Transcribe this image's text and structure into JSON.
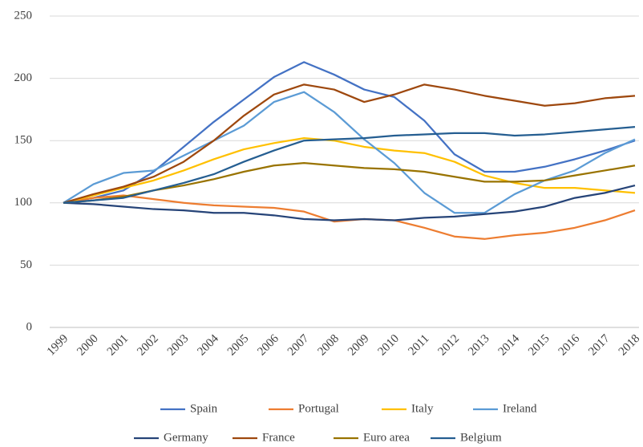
{
  "chart_data": {
    "type": "line",
    "categories": [
      "1999",
      "2000",
      "2001",
      "2002",
      "2003",
      "2004",
      "2005",
      "2006",
      "2007",
      "2008",
      "2009",
      "2010",
      "2011",
      "2012",
      "2013",
      "2014",
      "2015",
      "2016",
      "2017",
      "2018"
    ],
    "series": [
      {
        "name": "Spain",
        "color": "#4472c4",
        "values": [
          100,
          104,
          110,
          125,
          145,
          165,
          183,
          201,
          213,
          203,
          191,
          185,
          166,
          139,
          125,
          125,
          129,
          135,
          142,
          150
        ]
      },
      {
        "name": "Portugal",
        "color": "#ed7d31",
        "values": [
          100,
          104,
          106,
          103,
          100,
          98,
          97,
          96,
          93,
          85,
          87,
          86,
          80,
          73,
          71,
          74,
          76,
          80,
          86,
          94
        ]
      },
      {
        "name": "Italy",
        "color": "#ffc000",
        "values": [
          100,
          106,
          112,
          118,
          126,
          135,
          143,
          148,
          152,
          150,
          145,
          142,
          140,
          133,
          122,
          116,
          112,
          112,
          110,
          108
        ]
      },
      {
        "name": "Ireland",
        "color": "#5b9bd5",
        "values": [
          100,
          115,
          124,
          126,
          138,
          150,
          162,
          181,
          189,
          173,
          151,
          132,
          108,
          92,
          92,
          107,
          118,
          126,
          140,
          151
        ]
      },
      {
        "name": "Germany",
        "color": "#264478",
        "values": [
          100,
          99,
          97,
          95,
          94,
          92,
          92,
          90,
          87,
          86,
          87,
          86,
          88,
          89,
          91,
          93,
          97,
          104,
          108,
          114
        ]
      },
      {
        "name": "France",
        "color": "#9e480e",
        "values": [
          100,
          107,
          113,
          121,
          133,
          150,
          170,
          187,
          195,
          191,
          181,
          187,
          195,
          191,
          186,
          182,
          178,
          180,
          184,
          186
        ]
      },
      {
        "name": "Euro area",
        "color": "#997300",
        "values": [
          100,
          102,
          105,
          110,
          114,
          119,
          125,
          130,
          132,
          130,
          128,
          127,
          125,
          121,
          117,
          117,
          118,
          122,
          126,
          130
        ]
      },
      {
        "name": "Belgium",
        "color": "#255e91",
        "values": [
          100,
          102,
          104,
          110,
          116,
          123,
          133,
          142,
          150,
          151,
          152,
          154,
          155,
          156,
          156,
          154,
          155,
          157,
          159,
          161
        ]
      }
    ],
    "ylim": [
      0,
      250
    ],
    "yticks": [
      0,
      50,
      100,
      150,
      200,
      250
    ],
    "grid": true,
    "legend": "bottom"
  }
}
